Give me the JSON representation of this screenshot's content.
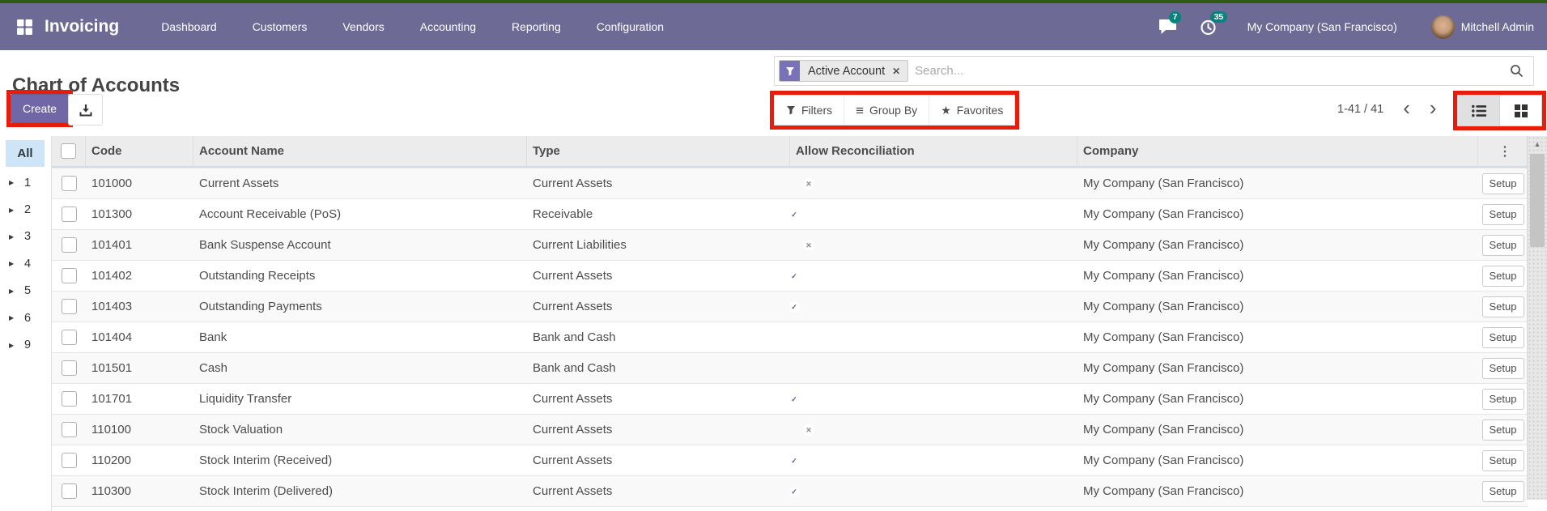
{
  "navbar": {
    "app_name": "Invoicing",
    "menus": [
      "Dashboard",
      "Customers",
      "Vendors",
      "Accounting",
      "Reporting",
      "Configuration"
    ],
    "messages_badge": "7",
    "activities_badge": "35",
    "company": "My Company (San Francisco)",
    "user": "Mitchell Admin"
  },
  "page": {
    "title": "Chart of Accounts",
    "create_label": "Create",
    "pager_display": "1-41 / 41"
  },
  "search": {
    "facet": "Active Account",
    "placeholder": "Search..."
  },
  "controls": {
    "filters": "Filters",
    "group_by": "Group By",
    "favorites": "Favorites"
  },
  "sidebar": {
    "all_label": "All",
    "groups": [
      "1",
      "2",
      "3",
      "4",
      "5",
      "6",
      "9"
    ]
  },
  "table": {
    "headers": {
      "code": "Code",
      "name": "Account Name",
      "type": "Type",
      "reconcile": "Allow Reconciliation",
      "company": "Company"
    },
    "setup_label": "Setup",
    "rows": [
      {
        "code": "101000",
        "name": "Current Assets",
        "type": "Current Assets",
        "reconcile": "off",
        "company": "My Company (San Francisco)"
      },
      {
        "code": "101300",
        "name": "Account Receivable (PoS)",
        "type": "Receivable",
        "reconcile": "on",
        "company": "My Company (San Francisco)"
      },
      {
        "code": "101401",
        "name": "Bank Suspense Account",
        "type": "Current Liabilities",
        "reconcile": "off",
        "company": "My Company (San Francisco)"
      },
      {
        "code": "101402",
        "name": "Outstanding Receipts",
        "type": "Current Assets",
        "reconcile": "on",
        "company": "My Company (San Francisco)"
      },
      {
        "code": "101403",
        "name": "Outstanding Payments",
        "type": "Current Assets",
        "reconcile": "on",
        "company": "My Company (San Francisco)"
      },
      {
        "code": "101404",
        "name": "Bank",
        "type": "Bank and Cash",
        "reconcile": "none",
        "company": "My Company (San Francisco)"
      },
      {
        "code": "101501",
        "name": "Cash",
        "type": "Bank and Cash",
        "reconcile": "none",
        "company": "My Company (San Francisco)"
      },
      {
        "code": "101701",
        "name": "Liquidity Transfer",
        "type": "Current Assets",
        "reconcile": "on",
        "company": "My Company (San Francisco)"
      },
      {
        "code": "110100",
        "name": "Stock Valuation",
        "type": "Current Assets",
        "reconcile": "off",
        "company": "My Company (San Francisco)"
      },
      {
        "code": "110200",
        "name": "Stock Interim (Received)",
        "type": "Current Assets",
        "reconcile": "on",
        "company": "My Company (San Francisco)"
      },
      {
        "code": "110300",
        "name": "Stock Interim (Delivered)",
        "type": "Current Assets",
        "reconcile": "on",
        "company": "My Company (San Francisco)"
      }
    ]
  },
  "icons": {
    "apps": "grid",
    "messages": "speech-bubble",
    "activities": "clock",
    "filter": "funnel",
    "search": "magnifier",
    "export": "download-tray",
    "list_view": "list-lines",
    "kanban_view": "grid-squares",
    "facet_remove": "✕",
    "group_by": "≡",
    "favorites_star": "★",
    "more_columns": "⋮",
    "pager_prev": "‹",
    "pager_next": "›",
    "scroll_up": "▲",
    "caret_right": "▶",
    "toggle_on_check": "✓",
    "toggle_off_x": "✕"
  },
  "colors": {
    "navbar": "#6e6a96",
    "primary_button": "#7267a6",
    "toggle_on": "#5e55a4",
    "facet_icon_bg": "#7a72b8",
    "badge": "#0b817c",
    "annotation_red": "#e81c0b",
    "sidebar_selected": "#cde5f7",
    "top_strip_green": "#2e5a14"
  }
}
